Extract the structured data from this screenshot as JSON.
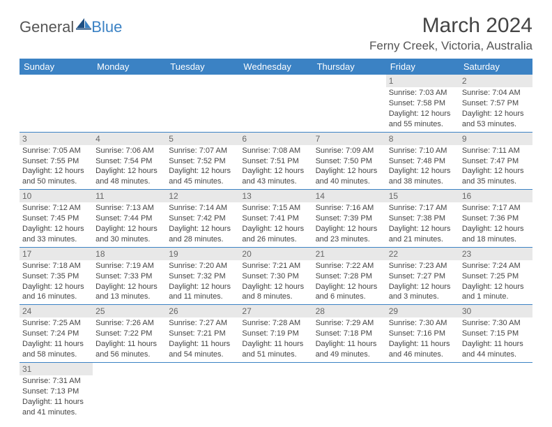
{
  "logo": {
    "text1": "General",
    "text2": "Blue"
  },
  "title": "March 2024",
  "location": "Ferny Creek, Victoria, Australia",
  "colors": {
    "header_bg": "#3b82c4",
    "header_fg": "#ffffff",
    "daynum_bg": "#e8e8e8",
    "daynum_fg": "#666666",
    "body_fg": "#444444",
    "rule": "#3b82c4"
  },
  "daynames": [
    "Sunday",
    "Monday",
    "Tuesday",
    "Wednesday",
    "Thursday",
    "Friday",
    "Saturday"
  ],
  "weeks": [
    [
      null,
      null,
      null,
      null,
      null,
      {
        "n": "1",
        "sr": "7:03 AM",
        "ss": "7:58 PM",
        "dl": "12 hours and 55 minutes."
      },
      {
        "n": "2",
        "sr": "7:04 AM",
        "ss": "7:57 PM",
        "dl": "12 hours and 53 minutes."
      }
    ],
    [
      {
        "n": "3",
        "sr": "7:05 AM",
        "ss": "7:55 PM",
        "dl": "12 hours and 50 minutes."
      },
      {
        "n": "4",
        "sr": "7:06 AM",
        "ss": "7:54 PM",
        "dl": "12 hours and 48 minutes."
      },
      {
        "n": "5",
        "sr": "7:07 AM",
        "ss": "7:52 PM",
        "dl": "12 hours and 45 minutes."
      },
      {
        "n": "6",
        "sr": "7:08 AM",
        "ss": "7:51 PM",
        "dl": "12 hours and 43 minutes."
      },
      {
        "n": "7",
        "sr": "7:09 AM",
        "ss": "7:50 PM",
        "dl": "12 hours and 40 minutes."
      },
      {
        "n": "8",
        "sr": "7:10 AM",
        "ss": "7:48 PM",
        "dl": "12 hours and 38 minutes."
      },
      {
        "n": "9",
        "sr": "7:11 AM",
        "ss": "7:47 PM",
        "dl": "12 hours and 35 minutes."
      }
    ],
    [
      {
        "n": "10",
        "sr": "7:12 AM",
        "ss": "7:45 PM",
        "dl": "12 hours and 33 minutes."
      },
      {
        "n": "11",
        "sr": "7:13 AM",
        "ss": "7:44 PM",
        "dl": "12 hours and 30 minutes."
      },
      {
        "n": "12",
        "sr": "7:14 AM",
        "ss": "7:42 PM",
        "dl": "12 hours and 28 minutes."
      },
      {
        "n": "13",
        "sr": "7:15 AM",
        "ss": "7:41 PM",
        "dl": "12 hours and 26 minutes."
      },
      {
        "n": "14",
        "sr": "7:16 AM",
        "ss": "7:39 PM",
        "dl": "12 hours and 23 minutes."
      },
      {
        "n": "15",
        "sr": "7:17 AM",
        "ss": "7:38 PM",
        "dl": "12 hours and 21 minutes."
      },
      {
        "n": "16",
        "sr": "7:17 AM",
        "ss": "7:36 PM",
        "dl": "12 hours and 18 minutes."
      }
    ],
    [
      {
        "n": "17",
        "sr": "7:18 AM",
        "ss": "7:35 PM",
        "dl": "12 hours and 16 minutes."
      },
      {
        "n": "18",
        "sr": "7:19 AM",
        "ss": "7:33 PM",
        "dl": "12 hours and 13 minutes."
      },
      {
        "n": "19",
        "sr": "7:20 AM",
        "ss": "7:32 PM",
        "dl": "12 hours and 11 minutes."
      },
      {
        "n": "20",
        "sr": "7:21 AM",
        "ss": "7:30 PM",
        "dl": "12 hours and 8 minutes."
      },
      {
        "n": "21",
        "sr": "7:22 AM",
        "ss": "7:28 PM",
        "dl": "12 hours and 6 minutes."
      },
      {
        "n": "22",
        "sr": "7:23 AM",
        "ss": "7:27 PM",
        "dl": "12 hours and 3 minutes."
      },
      {
        "n": "23",
        "sr": "7:24 AM",
        "ss": "7:25 PM",
        "dl": "12 hours and 1 minute."
      }
    ],
    [
      {
        "n": "24",
        "sr": "7:25 AM",
        "ss": "7:24 PM",
        "dl": "11 hours and 58 minutes."
      },
      {
        "n": "25",
        "sr": "7:26 AM",
        "ss": "7:22 PM",
        "dl": "11 hours and 56 minutes."
      },
      {
        "n": "26",
        "sr": "7:27 AM",
        "ss": "7:21 PM",
        "dl": "11 hours and 54 minutes."
      },
      {
        "n": "27",
        "sr": "7:28 AM",
        "ss": "7:19 PM",
        "dl": "11 hours and 51 minutes."
      },
      {
        "n": "28",
        "sr": "7:29 AM",
        "ss": "7:18 PM",
        "dl": "11 hours and 49 minutes."
      },
      {
        "n": "29",
        "sr": "7:30 AM",
        "ss": "7:16 PM",
        "dl": "11 hours and 46 minutes."
      },
      {
        "n": "30",
        "sr": "7:30 AM",
        "ss": "7:15 PM",
        "dl": "11 hours and 44 minutes."
      }
    ],
    [
      {
        "n": "31",
        "sr": "7:31 AM",
        "ss": "7:13 PM",
        "dl": "11 hours and 41 minutes."
      },
      null,
      null,
      null,
      null,
      null,
      null
    ]
  ],
  "labels": {
    "sunrise": "Sunrise: ",
    "sunset": "Sunset: ",
    "daylight": "Daylight: "
  }
}
